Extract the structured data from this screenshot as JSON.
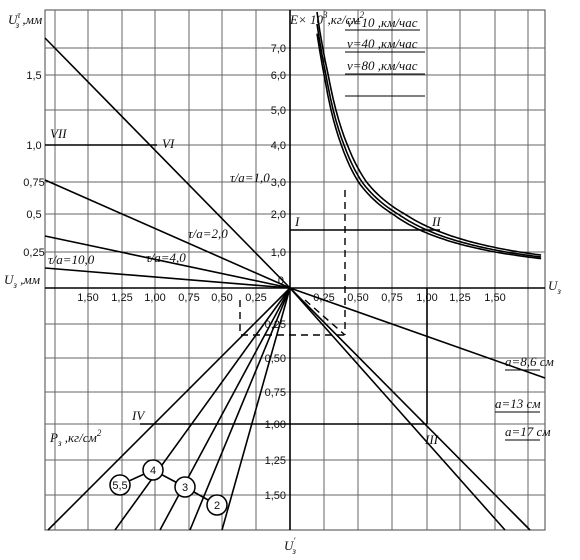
{
  "labels": {
    "uz_tau": [
      {
        "text": "U"
      },
      {
        "text": "τ",
        "pos": "sup"
      },
      {
        "text": "з",
        "pos": "sub"
      },
      {
        "text": " ,мм"
      }
    ],
    "e_axis": [
      {
        "text": "E× 10"
      },
      {
        "text": "3",
        "pos": "sup"
      },
      {
        "text": ",кг/см"
      },
      {
        "text": "2",
        "pos": "sup"
      }
    ],
    "uz_left": [
      {
        "text": "U"
      },
      {
        "text": "з",
        "pos": "sub"
      },
      {
        "text": " ,мм"
      }
    ],
    "uz_right": [
      {
        "text": "U"
      },
      {
        "text": "з",
        "pos": "sub"
      }
    ],
    "uz_prime": [
      {
        "text": "U"
      },
      {
        "text": "'",
        "pos": "sup"
      },
      {
        "text": "з",
        "pos": "sub"
      }
    ],
    "pz": [
      {
        "text": "P"
      },
      {
        "text": "з",
        "pos": "sub"
      },
      {
        "text": " ,кг/см"
      },
      {
        "text": "2",
        "pos": "sup"
      }
    ]
  },
  "ticks": {
    "left_x": [
      "1,50",
      "1,25",
      "1,00",
      "0,75",
      "0,50",
      "0,25"
    ],
    "right_x": [
      "0,25",
      "0,50",
      "0,75",
      "1,00",
      "1,25",
      "1,50"
    ],
    "left_y": [
      "1,5",
      "1,0",
      "0,75",
      "0,5",
      "0,25"
    ],
    "e_y": [
      "7,0",
      "6,0",
      "5,0",
      "4,0",
      "3,0",
      "2,0",
      "1,0"
    ],
    "bottom_y": [
      "0,25",
      "0,50",
      "0,75",
      "1,00",
      "1,25",
      "1,50"
    ],
    "origin": "0"
  },
  "line_labels": {
    "tau": [
      "τ/a=1,0",
      "τ/a=2,0",
      "τ/a=4,0",
      "τ/a=10,0"
    ],
    "speed": [
      "v=10 ,км/час",
      "v=40 ,км/час",
      "v=80 ,км/час"
    ],
    "a": [
      "a=8,6 см",
      "a=13 см",
      "a=17 см"
    ],
    "roman": [
      "I",
      "II",
      "III",
      "IV",
      "VI",
      "VII"
    ],
    "pressure": [
      "5,5",
      "4",
      "3",
      "2"
    ]
  }
}
